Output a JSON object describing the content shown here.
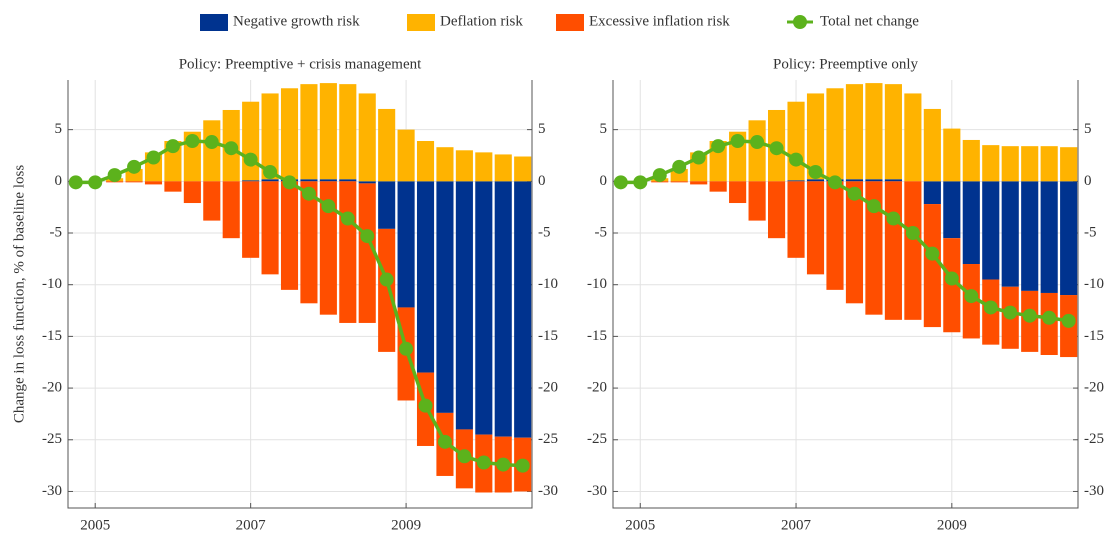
{
  "chart_data": [
    {
      "type": "bar",
      "title": "Policy:  Preemptive + crisis management",
      "y_label": "Change in loss function, % of baseline loss",
      "x": [
        2004.75,
        2005,
        2005.25,
        2005.5,
        2005.75,
        2006,
        2006.25,
        2006.5,
        2006.75,
        2007,
        2007.25,
        2007.5,
        2007.75,
        2008,
        2008.25,
        2008.5,
        2008.75,
        2009,
        2009.25,
        2009.5,
        2009.75,
        2010,
        2010.25,
        2010.5
      ],
      "xlim": [
        2004.65,
        2010.62
      ],
      "xticks": [
        2005,
        2007,
        2009
      ],
      "ylim": [
        -31.6,
        9.8
      ],
      "yticks": [
        -30,
        -25,
        -20,
        -15,
        -10,
        -5,
        0,
        5
      ],
      "grid": true,
      "series": [
        {
          "name": "Negative growth risk",
          "type": "bar",
          "color": "#00338f",
          "values": [
            0,
            0,
            0,
            0,
            0,
            0,
            0,
            0,
            0,
            0.1,
            0.2,
            0.2,
            0.2,
            0.2,
            0.2,
            -0.2,
            -4.6,
            -12.2,
            -18.5,
            -22.4,
            -24,
            -24.5,
            -24.7,
            -24.8
          ]
        },
        {
          "name": "Deflation risk",
          "type": "bar",
          "color": "#ffb300",
          "values": [
            0,
            0,
            0.3,
            1.2,
            2.8,
            3.9,
            4.8,
            5.9,
            6.9,
            7.6,
            8.3,
            8.8,
            9.2,
            9.3,
            9.2,
            8.5,
            7.0,
            5.0,
            3.9,
            3.3,
            3.0,
            2.8,
            2.6,
            2.4
          ]
        },
        {
          "name": "Excessive inflation risk",
          "type": "bar",
          "color": "#ff4e00",
          "values": [
            0,
            0,
            -0.1,
            -0.1,
            -0.3,
            -1.0,
            -2.1,
            -3.8,
            -5.5,
            -7.4,
            -9.0,
            -10.5,
            -11.8,
            -12.9,
            -13.7,
            -13.5,
            -11.9,
            -9.0,
            -7.1,
            -6.1,
            -5.7,
            -5.6,
            -5.4,
            -5.2
          ]
        },
        {
          "name": "Total net change",
          "type": "line",
          "color": "#5cb21c",
          "values": [
            -0.1,
            -0.1,
            0.6,
            1.4,
            2.3,
            3.4,
            3.9,
            3.8,
            3.2,
            2.1,
            0.9,
            -0.1,
            -1.2,
            -2.4,
            -3.6,
            -5.3,
            -9.5,
            -16.2,
            -21.7,
            -25.2,
            -26.6,
            -27.2,
            -27.4,
            -27.5
          ]
        }
      ]
    },
    {
      "type": "bar",
      "title": "Policy:  Preemptive only",
      "x": [
        2004.75,
        2005,
        2005.25,
        2005.5,
        2005.75,
        2006,
        2006.25,
        2006.5,
        2006.75,
        2007,
        2007.25,
        2007.5,
        2007.75,
        2008,
        2008.25,
        2008.5,
        2008.75,
        2009,
        2009.25,
        2009.5,
        2009.75,
        2010,
        2010.25,
        2010.5
      ],
      "xlim": [
        2004.65,
        2010.62
      ],
      "xticks": [
        2005,
        2007,
        2009
      ],
      "ylim": [
        -31.6,
        9.8
      ],
      "yticks": [
        -30,
        -25,
        -20,
        -15,
        -10,
        -5,
        0,
        5
      ],
      "grid": true,
      "series": [
        {
          "type": "bar",
          "color": "#00338f",
          "values": [
            0,
            0,
            0,
            0,
            0,
            0,
            0,
            0,
            0,
            0.1,
            0.2,
            0.2,
            0.2,
            0.2,
            0.2,
            0,
            -2.2,
            -5.5,
            -8.0,
            -9.5,
            -10.2,
            -10.6,
            -10.8,
            -11.0
          ]
        },
        {
          "type": "bar",
          "color": "#ffb300",
          "values": [
            0,
            0,
            0.3,
            1.2,
            2.8,
            3.9,
            4.8,
            5.9,
            6.9,
            7.6,
            8.3,
            8.8,
            9.2,
            9.3,
            9.2,
            8.5,
            7.0,
            5.1,
            4.0,
            3.5,
            3.4,
            3.4,
            3.4,
            3.3
          ]
        },
        {
          "type": "bar",
          "color": "#ff4e00",
          "values": [
            0,
            0,
            -0.1,
            -0.1,
            -0.3,
            -1.0,
            -2.1,
            -3.8,
            -5.5,
            -7.4,
            -9.0,
            -10.5,
            -11.8,
            -12.9,
            -13.4,
            -13.4,
            -11.9,
            -9.1,
            -7.2,
            -6.3,
            -6.0,
            -5.9,
            -6.0,
            -6.0
          ]
        },
        {
          "type": "line",
          "color": "#5cb21c",
          "values": [
            -0.1,
            -0.1,
            0.6,
            1.4,
            2.3,
            3.4,
            3.9,
            3.8,
            3.2,
            2.1,
            0.9,
            -0.1,
            -1.2,
            -2.4,
            -3.6,
            -5.0,
            -7.0,
            -9.4,
            -11.1,
            -12.2,
            -12.7,
            -13.0,
            -13.2,
            -13.5
          ]
        }
      ]
    }
  ]
}
